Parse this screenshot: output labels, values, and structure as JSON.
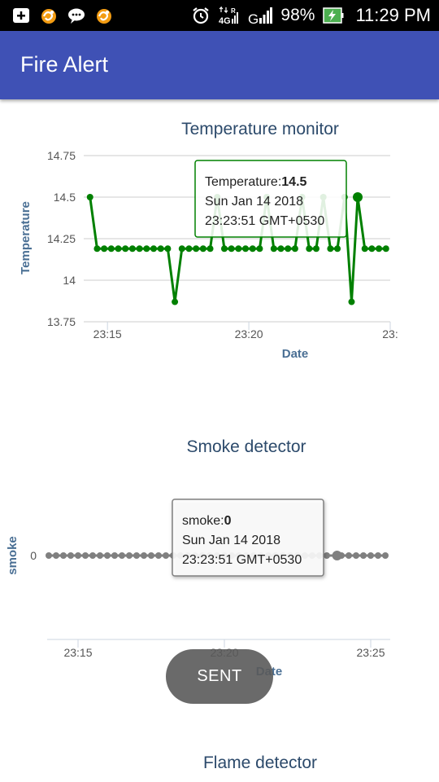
{
  "status_bar": {
    "left_icons": [
      "add-box-icon",
      "uc-browser-icon",
      "chat-bubble-icon",
      "uc-browser-icon"
    ],
    "right_icons": [
      "alarm-icon",
      "4g-signal-icon",
      "signal-icon",
      "battery-charging-icon"
    ],
    "net_label": "4G",
    "roaming_label": "R",
    "g_label": "G",
    "battery_percent": "98%",
    "time": "11:29 PM"
  },
  "app": {
    "title": "Fire Alert",
    "header_color": "#3f51b5"
  },
  "charts": {
    "temperature": {
      "title": "Temperature monitor",
      "ylabel": "Temperature",
      "xlabel": "Date",
      "tooltip": {
        "series": "Temperature:",
        "value": "14.5",
        "date": "Sun Jan 14 2018",
        "time": "23:23:51 GMT+0530"
      }
    },
    "smoke": {
      "title": "Smoke detector",
      "ylabel": "smoke",
      "xlabel": "Date",
      "tooltip": {
        "series": "smoke:",
        "value": "0",
        "date": "Sun Jan 14 2018",
        "time": "23:23:51 GMT+0530"
      }
    },
    "flame": {
      "title": "Flame detector"
    }
  },
  "toast": {
    "label": "SENT"
  },
  "chart_data": [
    {
      "type": "line",
      "title": "Temperature monitor",
      "xlabel": "Date",
      "ylabel": "Temperature",
      "ylim": [
        13.75,
        14.75
      ],
      "yticks": [
        13.75,
        14,
        14.25,
        14.5,
        14.75
      ],
      "ytick_labels": [
        "13.75",
        "14",
        "14.25",
        "14.5",
        "14.75"
      ],
      "xlim": [
        "23:14:20",
        "23:25:00"
      ],
      "xticks": [
        "23:15",
        "23:20",
        "23:25"
      ],
      "xtick_labels": [
        "23:15",
        "23:20",
        "23:"
      ],
      "color": "#008000",
      "grid": true,
      "series": [
        {
          "x": [
            "23:14:23",
            "23:14:38",
            "23:14:53",
            "23:15:08",
            "23:15:23",
            "23:15:38",
            "23:15:53",
            "23:16:08",
            "23:16:23",
            "23:16:38",
            "23:16:53",
            "23:17:08",
            "23:17:23",
            "23:17:38",
            "23:17:53",
            "23:18:08",
            "23:18:23",
            "23:18:38",
            "23:18:53",
            "23:19:08",
            "23:19:23",
            "23:19:38",
            "23:19:53",
            "23:20:08",
            "23:20:23",
            "23:20:38",
            "23:20:53",
            "23:21:08",
            "23:21:23",
            "23:21:38",
            "23:21:53",
            "23:22:08",
            "23:22:23",
            "23:22:38",
            "23:22:53",
            "23:23:08",
            "23:23:23",
            "23:23:38",
            "23:23:51",
            "23:24:06",
            "23:24:21",
            "23:24:36",
            "23:24:51"
          ],
          "values": [
            14.5,
            14.19,
            14.19,
            14.19,
            14.19,
            14.19,
            14.19,
            14.19,
            14.19,
            14.19,
            14.19,
            14.19,
            13.87,
            14.19,
            14.19,
            14.19,
            14.19,
            14.19,
            14.5,
            14.19,
            14.19,
            14.19,
            14.19,
            14.19,
            14.19,
            14.5,
            14.19,
            14.19,
            14.19,
            14.19,
            14.5,
            14.19,
            14.19,
            14.5,
            14.19,
            14.19,
            14.5,
            13.87,
            14.5,
            14.19,
            14.19,
            14.19,
            14.19
          ]
        }
      ],
      "highlight_x": "23:23:51"
    },
    {
      "type": "line",
      "title": "Smoke detector",
      "xlabel": "Date",
      "ylabel": "smoke",
      "ylim": [
        -1,
        1
      ],
      "yticks": [
        0
      ],
      "ytick_labels": [
        "0"
      ],
      "xlim": [
        "23:14:00",
        "23:25:40"
      ],
      "xticks": [
        "23:15",
        "23:20",
        "23:25"
      ],
      "xtick_labels": [
        "23:15",
        "23:20",
        "23:25"
      ],
      "color": "#808080",
      "grid": false,
      "series": [
        {
          "x": [
            "23:14:00",
            "23:14:15",
            "23:14:30",
            "23:14:45",
            "23:15:00",
            "23:15:15",
            "23:15:30",
            "23:15:45",
            "23:16:00",
            "23:16:15",
            "23:16:30",
            "23:16:45",
            "23:17:00",
            "23:17:15",
            "23:17:30",
            "23:17:45",
            "23:18:00",
            "23:18:15",
            "23:18:30",
            "23:18:45",
            "23:19:00",
            "23:19:15",
            "23:19:30",
            "23:19:45",
            "23:20:00",
            "23:20:15",
            "23:20:30",
            "23:20:45",
            "23:21:00",
            "23:21:15",
            "23:21:30",
            "23:21:45",
            "23:22:00",
            "23:22:15",
            "23:22:30",
            "23:22:45",
            "23:23:00",
            "23:23:15",
            "23:23:30",
            "23:23:51",
            "23:24:00",
            "23:24:15",
            "23:24:30",
            "23:24:45",
            "23:25:00",
            "23:25:15",
            "23:25:30"
          ],
          "values": [
            0,
            0,
            0,
            0,
            0,
            0,
            0,
            0,
            0,
            0,
            0,
            0,
            0,
            0,
            0,
            0,
            0,
            0,
            0,
            0,
            0,
            0,
            0,
            0,
            0,
            0,
            0,
            0,
            0,
            0,
            0,
            0,
            0,
            0,
            0,
            0,
            0,
            0,
            0,
            0,
            0,
            0,
            0,
            0,
            0,
            0,
            0
          ]
        }
      ],
      "highlight_x": "23:23:51"
    }
  ]
}
